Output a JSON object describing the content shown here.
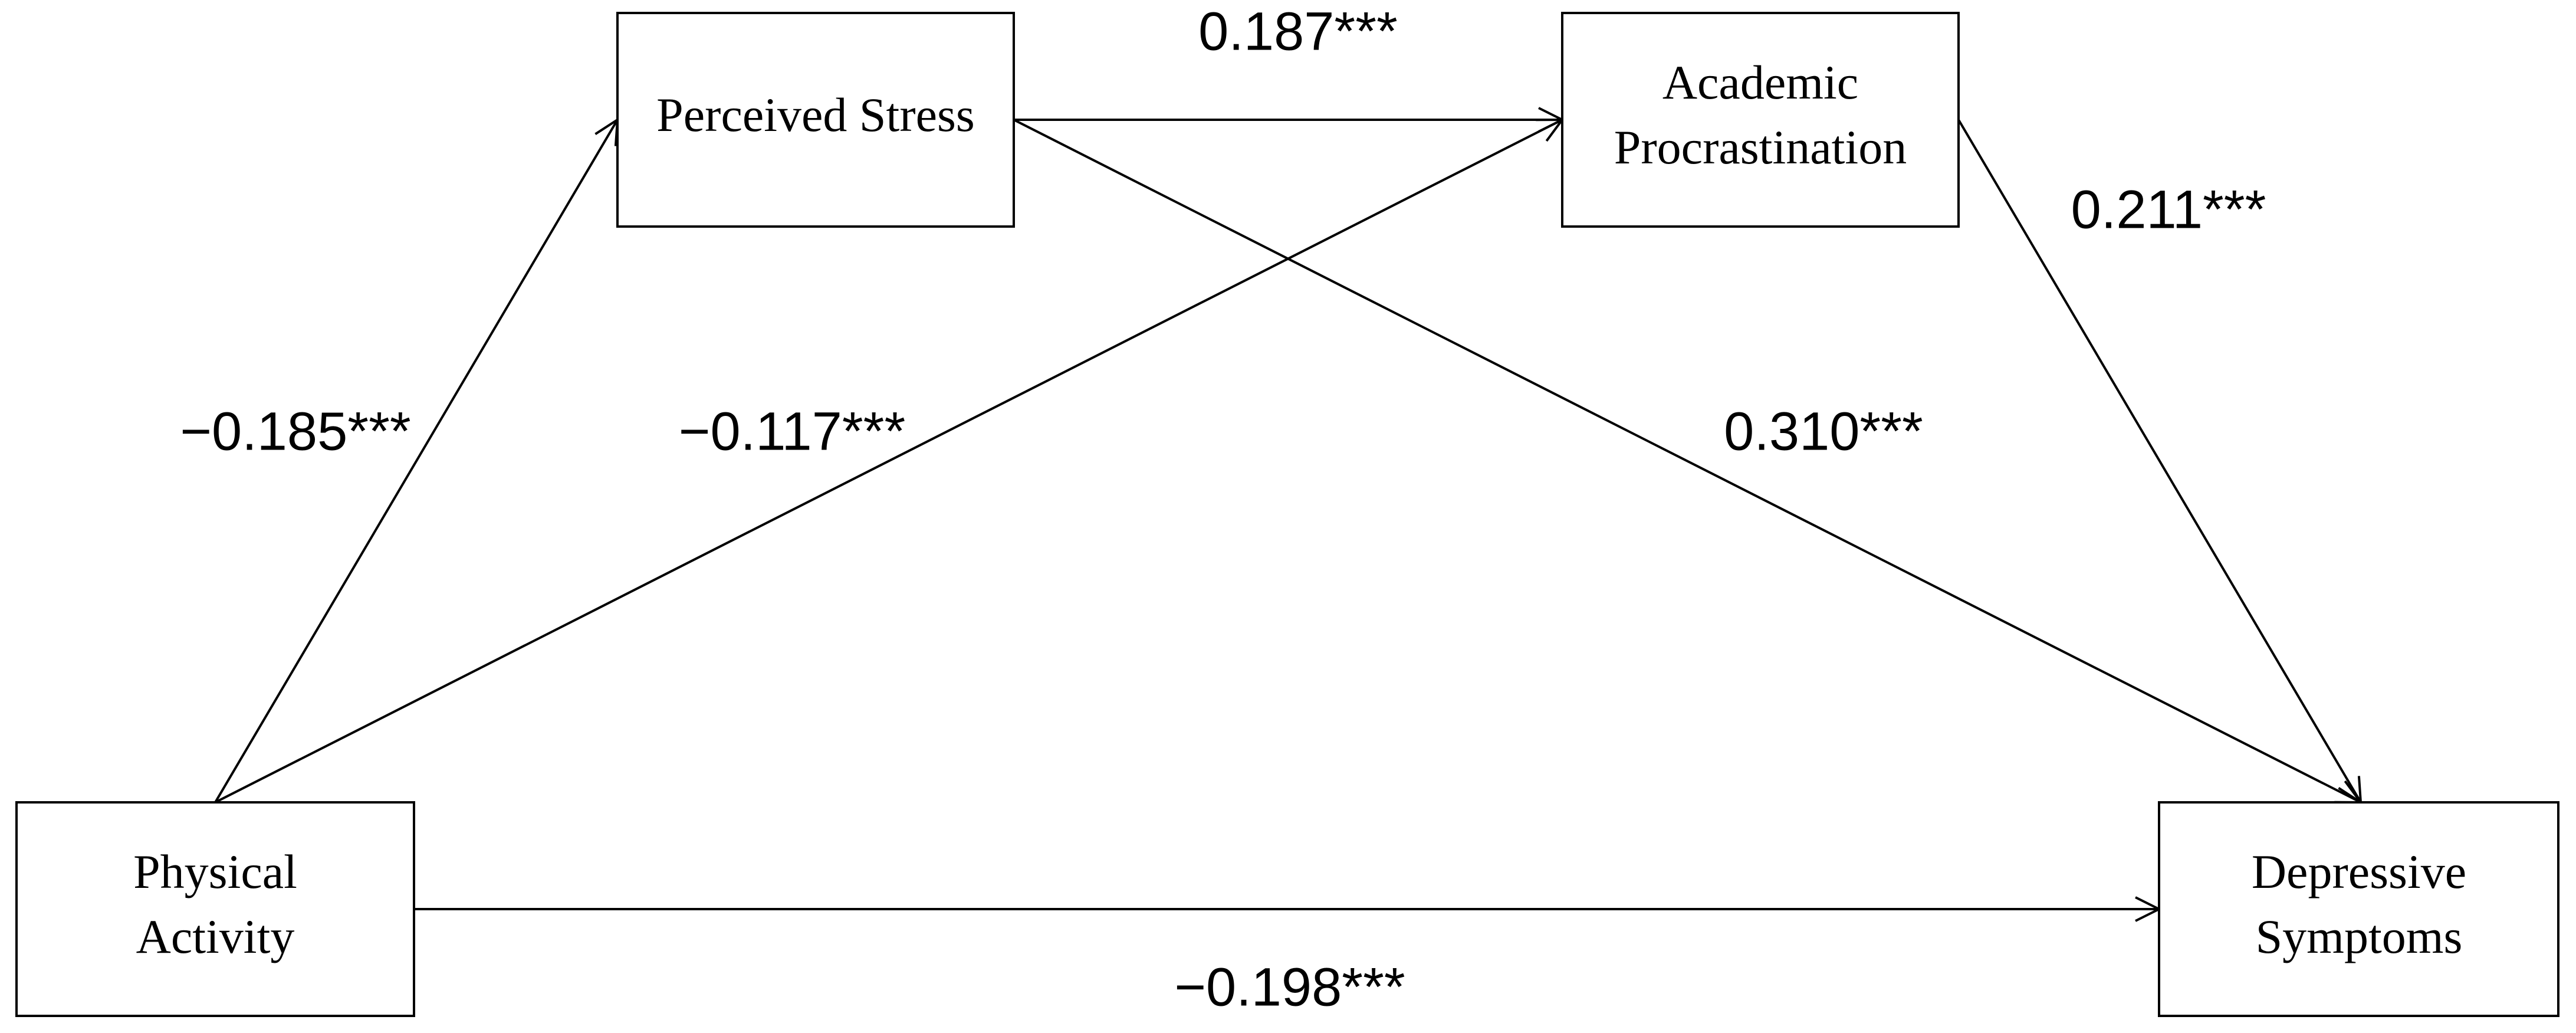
{
  "nodes": [
    {
      "lines": [
        "Perceived Stress"
      ]
    },
    {
      "lines": [
        "Academic",
        "Procrastination"
      ]
    },
    {
      "lines": [
        "Physical",
        "Activity"
      ]
    },
    {
      "lines": [
        "Depressive",
        "Symptoms"
      ]
    }
  ],
  "edges": [
    {
      "label": "0.187***"
    },
    {
      "label": "0.211***"
    },
    {
      "label": "−0.185***"
    },
    {
      "label": "−0.117***"
    },
    {
      "label": "0.310***"
    },
    {
      "label": "−0.198***"
    }
  ]
}
